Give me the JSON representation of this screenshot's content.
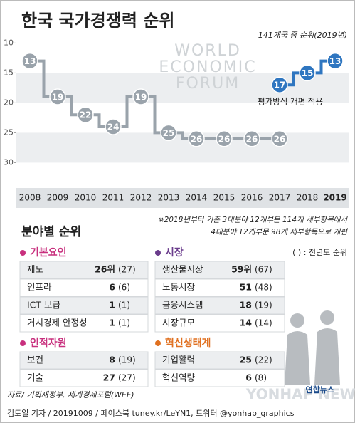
{
  "chart_data": {
    "type": "step",
    "title": "한국 국가경쟁력 순위",
    "subtitle": "141개국 중 순위(2019년)",
    "categories": [
      "2008",
      "2009",
      "2010",
      "2011",
      "2012",
      "2013",
      "2014",
      "2015",
      "2016",
      "2017",
      "2018",
      "2019"
    ],
    "series": [
      {
        "color": "#9aa3ab",
        "values": [
          13,
          19,
          22,
          24,
          19,
          25,
          26,
          26,
          26,
          26,
          null,
          null
        ]
      },
      {
        "color": "#2f76c0",
        "values": [
          null,
          null,
          null,
          null,
          null,
          null,
          null,
          null,
          null,
          17,
          15,
          13
        ]
      }
    ],
    "ylim": [
      9,
      34
    ],
    "yticks": [
      10,
      15,
      20,
      25,
      30
    ],
    "y_inverted": true,
    "bands": true,
    "annotations": [
      "평가방식 개편 적용"
    ],
    "logo": [
      "WORLD",
      "ECONOMIC",
      "FORUM"
    ],
    "notes": [
      "※2018년부터 기존 3대분야 12개부문 114개 세부항목에서",
      "4대분야 12개부문 98개 세부항목으로 개편"
    ]
  },
  "breakdown": {
    "title": "분야별 순위",
    "legend": "( ) : 전년도 순위",
    "groups": [
      {
        "name": "기본요인",
        "color": "#c8307e",
        "rows": [
          [
            "제도",
            "26위",
            "(27)"
          ],
          [
            "인프라",
            "6",
            "(6)"
          ],
          [
            "ICT 보급",
            "1",
            "(1)"
          ],
          [
            "거시경제 안정성",
            "1",
            "(1)"
          ]
        ]
      },
      {
        "name": "시장",
        "color": "#6a3c8c",
        "rows": [
          [
            "생산물시장",
            "59위",
            "(67)"
          ],
          [
            "노동시장",
            "51",
            "(48)"
          ],
          [
            "금융시스템",
            "18",
            "(19)"
          ],
          [
            "시장규모",
            "14",
            "(14)"
          ]
        ]
      },
      {
        "name": "인적자원",
        "color": "#c8307e",
        "rows": [
          [
            "보건",
            "8",
            "(19)"
          ],
          [
            "기술",
            "27",
            "(27)"
          ]
        ]
      },
      {
        "name": "혁신생태계",
        "color": "#e07020",
        "rows": [
          [
            "기업활력",
            "25",
            "(22)"
          ],
          [
            "혁신역량",
            "6",
            "(8)"
          ]
        ]
      }
    ]
  },
  "source": "자료/ 기획재정부, 세계경제포럼(WEF)",
  "credit": "김토일 기자 / 20191009 / 페이스북 tuney.kr/LeYN1, 트위터 @yonhap_graphics",
  "watermark": "YONHAP NEWS",
  "brand": "연합뉴스"
}
